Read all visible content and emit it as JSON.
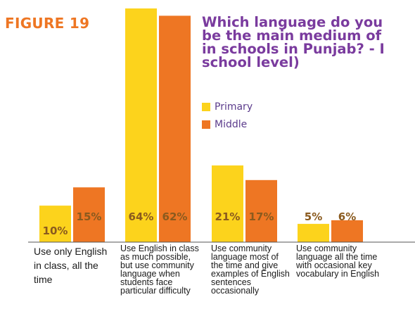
{
  "figure_label": "FIGURE 19",
  "chart_data": {
    "type": "bar",
    "title_lines": [
      "Which language do you",
      "be the main medium of",
      "in schools in Punjab? - I",
      "school  level)"
    ],
    "categories": [
      "Use only English in class, all the time",
      "Use English in class as much possible, but use community language when students face particular difficulty",
      "Use community language most of the time and give examples of English sentences occasionally",
      "Use community language all the time with occasional key vocabulary in English"
    ],
    "series": [
      {
        "name": "Primary",
        "values": [
          10,
          64,
          21,
          5
        ],
        "labels": [
          "10%",
          "64%",
          "21%",
          "5%"
        ]
      },
      {
        "name": "Middle",
        "values": [
          15,
          62,
          17,
          6
        ],
        "labels": [
          "15%",
          "62%",
          "17%",
          "6%"
        ]
      }
    ],
    "colors": {
      "Primary": "#fcd31c",
      "Middle": "#ee7623",
      "figure_label": "#ee7623",
      "title": "#7a3b9e",
      "value_label": "#8a5a1e",
      "axis": "#555555"
    },
    "ylim": [
      0,
      64
    ],
    "legend_position": "right",
    "grid": false
  }
}
